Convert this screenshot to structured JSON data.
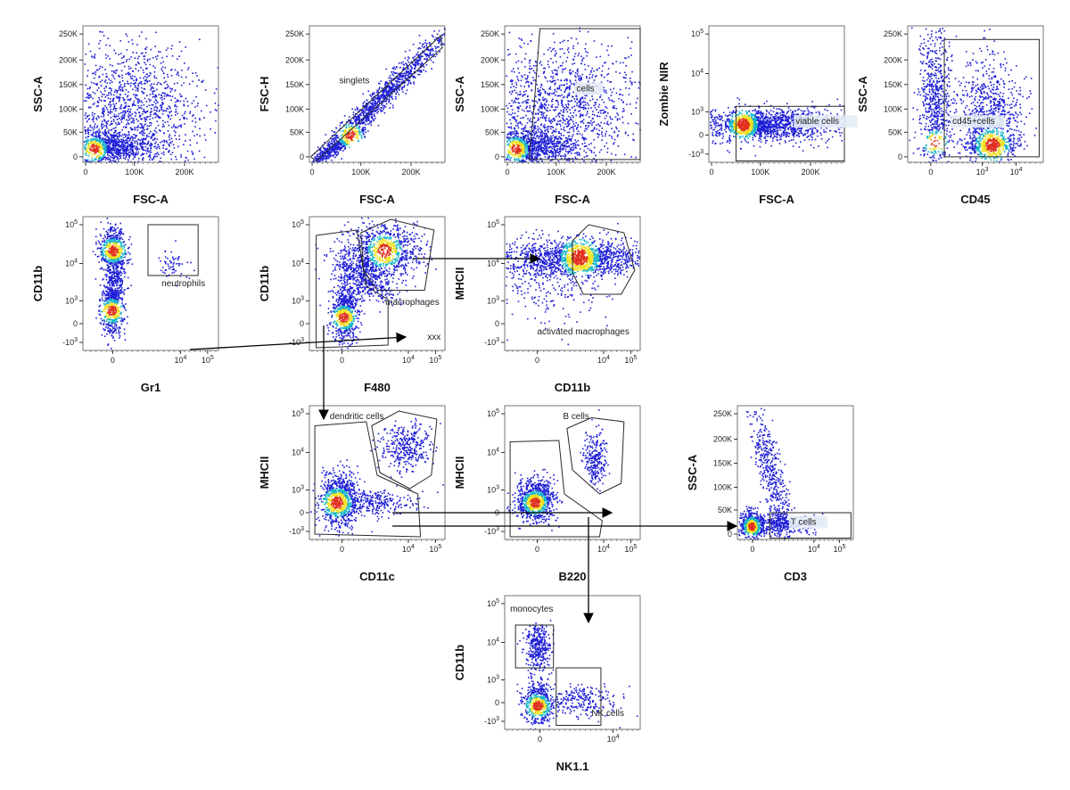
{
  "title": "",
  "colors": {
    "density_low": "#1f1fd6",
    "density_mid": "#18b6c8",
    "density_high": "#f0e020",
    "density_peak": "#e0301e",
    "gate": "#2a2a2a",
    "arrow": "#000000"
  },
  "plots": [
    {
      "id": "p1",
      "x_axis": "FSC-A",
      "y_axis": "SSC-A",
      "x_ticks": [
        "0",
        "100K",
        "200K"
      ],
      "y_ticks": [
        "0",
        "50K",
        "100K",
        "150K",
        "200K",
        "250K"
      ],
      "gates": []
    },
    {
      "id": "p2",
      "x_axis": "FSC-A",
      "y_axis": "FSC-H",
      "x_ticks": [
        "0",
        "100K",
        "200K"
      ],
      "y_ticks": [
        "0",
        "50K",
        "100K",
        "150K",
        "200K",
        "250K"
      ],
      "gates": [
        {
          "label": "singlets"
        }
      ]
    },
    {
      "id": "p3",
      "x_axis": "FSC-A",
      "y_axis": "SSC-A",
      "x_ticks": [
        "0",
        "100K",
        "200K"
      ],
      "y_ticks": [
        "0",
        "50K",
        "100K",
        "150K",
        "200K",
        "250K"
      ],
      "gates": [
        {
          "label": "cells"
        }
      ]
    },
    {
      "id": "p4",
      "x_axis": "FSC-A",
      "y_axis": "Zombie NIR",
      "x_ticks": [
        "0",
        "100K",
        "200K"
      ],
      "y_ticks": [
        "10^5",
        "10^4",
        "10^3",
        "0",
        "-10^3"
      ],
      "gates": [
        {
          "label": "viable cells"
        }
      ]
    },
    {
      "id": "p5",
      "x_axis": "CD45",
      "y_axis": "SSC-A",
      "x_ticks": [
        "0",
        "10^3",
        "10^4"
      ],
      "y_ticks": [
        "0",
        "50K",
        "100K",
        "150K",
        "200K",
        "250K"
      ],
      "gates": [
        {
          "label": "cd45+cells"
        }
      ]
    },
    {
      "id": "p6",
      "x_axis": "Gr1",
      "y_axis": "CD11b",
      "x_ticks": [
        "0",
        "10^4",
        "10^5"
      ],
      "y_ticks": [
        "10^5",
        "10^4",
        "10^3",
        "0",
        "-10^3"
      ],
      "gates": [
        {
          "label": "neutrophils"
        }
      ]
    },
    {
      "id": "p7",
      "x_axis": "F480",
      "y_axis": "CD11b",
      "x_ticks": [
        "0",
        "10^4",
        "10^5"
      ],
      "y_ticks": [
        "10^5",
        "10^4",
        "10^3",
        "0",
        "-10^3"
      ],
      "gates": [
        {
          "label": "macrophages"
        },
        {
          "label": "xxx"
        }
      ]
    },
    {
      "id": "p8",
      "x_axis": "CD11b",
      "y_axis": "MHCII",
      "x_ticks": [
        "0",
        "10^4",
        "10^5"
      ],
      "y_ticks": [
        "10^5",
        "10^4",
        "10^3",
        "0",
        "-10^3"
      ],
      "gates": [
        {
          "label": "activated macrophages"
        }
      ]
    },
    {
      "id": "p9",
      "x_axis": "CD11c",
      "y_axis": "MHCII",
      "x_ticks": [
        "0",
        "10^4",
        "10^5"
      ],
      "y_ticks": [
        "10^5",
        "10^4",
        "10^3",
        "0",
        "-10^3"
      ],
      "gates": [
        {
          "label": "dendritic cells"
        }
      ]
    },
    {
      "id": "p10",
      "x_axis": "B220",
      "y_axis": "MHCII",
      "x_ticks": [
        "0",
        "10^4",
        "10^5"
      ],
      "y_ticks": [
        "10^5",
        "10^4",
        "10^3",
        "0",
        "-10^3"
      ],
      "gates": [
        {
          "label": "B cells"
        }
      ]
    },
    {
      "id": "p11",
      "x_axis": "CD3",
      "y_axis": "SSC-A",
      "x_ticks": [
        "0",
        "10^4",
        "10^5"
      ],
      "y_ticks": [
        "0",
        "50K",
        "100K",
        "150K",
        "200K",
        "250K"
      ],
      "gates": [
        {
          "label": "T cells"
        }
      ]
    },
    {
      "id": "p12",
      "x_axis": "NK1.1",
      "y_axis": "CD11b",
      "x_ticks": [
        "0",
        "10^4"
      ],
      "y_ticks": [
        "10^5",
        "10^4",
        "10^3",
        "0",
        "-10^3"
      ],
      "gates": [
        {
          "label": "monocytes"
        },
        {
          "label": "NK cells"
        }
      ]
    }
  ]
}
